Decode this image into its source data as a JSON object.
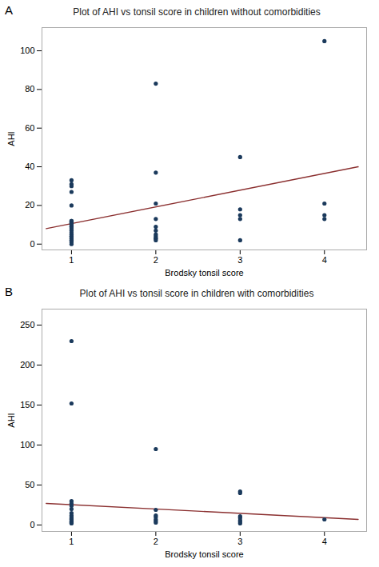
{
  "chart_data": [
    {
      "type": "scatter",
      "title": "Plot of AHI vs tonsil score in children without comorbidities",
      "xlabel": "Brodsky tonsil score",
      "ylabel": "AHI",
      "annotations": [
        "A"
      ],
      "series": [
        {
          "type": "scatter",
          "color": "#1b3a5c",
          "x": [
            1,
            1,
            1,
            1,
            1,
            1,
            1,
            1,
            1,
            1,
            1,
            1,
            1,
            1,
            1,
            1,
            1,
            1,
            1,
            1,
            1,
            1,
            1,
            1,
            1,
            2,
            2,
            2,
            2,
            2,
            2,
            2,
            2,
            2,
            2,
            2,
            3,
            3,
            3,
            3,
            3,
            4,
            4,
            4,
            4
          ],
          "values": [
            33,
            31,
            30,
            27,
            20,
            12,
            12,
            11,
            11,
            10,
            10,
            9,
            9,
            8,
            7,
            6,
            5,
            4,
            4,
            3,
            3,
            2,
            2,
            1,
            0,
            83,
            37,
            21,
            13,
            9,
            7,
            5,
            4,
            3,
            3,
            2,
            45,
            18,
            15,
            13,
            2,
            105,
            21,
            15,
            13
          ]
        },
        {
          "type": "line",
          "color": "#8b3030",
          "x": [
            0.7,
            4.4
          ],
          "values": [
            8,
            40
          ]
        }
      ],
      "xlim": [
        0.65,
        4.5
      ],
      "ylim": [
        -3,
        112
      ],
      "xticks": [
        1,
        2,
        3,
        4
      ],
      "yticks": [
        0,
        20,
        40,
        60,
        80,
        100
      ],
      "grid": false
    },
    {
      "type": "scatter",
      "title": "Plot of AHI vs tonsil score in children with comorbidities",
      "xlabel": "Brodsky tonsil score",
      "ylabel": "AHI",
      "annotations": [
        "B"
      ],
      "series": [
        {
          "type": "scatter",
          "color": "#1b3a5c",
          "x": [
            1,
            1,
            1,
            1,
            1,
            1,
            1,
            1,
            1,
            1,
            1,
            1,
            1,
            1,
            1,
            2,
            2,
            2,
            2,
            2,
            2,
            2,
            3,
            3,
            3,
            3,
            3,
            3,
            3,
            4
          ],
          "values": [
            230,
            152,
            30,
            27,
            24,
            20,
            15,
            12,
            10,
            8,
            7,
            5,
            4,
            3,
            2,
            95,
            19,
            12,
            10,
            7,
            5,
            3,
            42,
            40,
            11,
            9,
            6,
            4,
            2,
            7
          ]
        },
        {
          "type": "line",
          "color": "#8b3030",
          "x": [
            0.7,
            4.4
          ],
          "values": [
            27,
            7
          ]
        }
      ],
      "xlim": [
        0.65,
        4.5
      ],
      "ylim": [
        -8,
        270
      ],
      "xticks": [
        1,
        2,
        3,
        4
      ],
      "yticks": [
        0,
        50,
        100,
        150,
        200,
        250
      ],
      "grid": false
    }
  ]
}
